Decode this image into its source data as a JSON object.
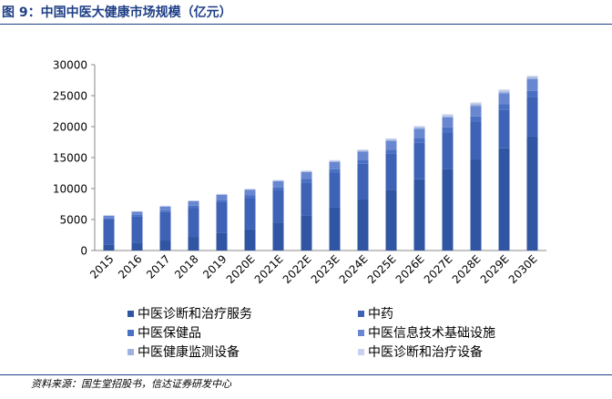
{
  "header": {
    "title": "图 9：中国中医大健康市场规模（亿元）"
  },
  "footer": {
    "source": "资料来源：国生堂招股书，信达证券研发中心"
  },
  "chart_data": {
    "type": "bar",
    "stacked": true,
    "title": "图 9：中国中医大健康市场规模（亿元）",
    "xlabel": "",
    "ylabel": "",
    "ylim": [
      0,
      30000
    ],
    "yticks": [
      "0",
      "5000",
      "10000",
      "15000",
      "20000",
      "25000",
      "30000"
    ],
    "grid": false,
    "legend_position": "bottom",
    "categories": [
      "2015",
      "2016",
      "2017",
      "2018",
      "2019",
      "2020E",
      "2021E",
      "2022E",
      "2023E",
      "2024E",
      "2025E",
      "2026E",
      "2027E",
      "2028E",
      "2029E",
      "2030E"
    ],
    "series": [
      {
        "name": "中医诊断和治疗服务",
        "color": "#2f55a3",
        "values": [
          1000,
          1300,
          1700,
          2200,
          2900,
          3500,
          4500,
          5600,
          7000,
          8300,
          9800,
          11500,
          13100,
          14700,
          16500,
          18500
        ]
      },
      {
        "name": "中药",
        "color": "#3d62b6",
        "values": [
          4000,
          4200,
          4500,
          4700,
          4900,
          4950,
          5200,
          5400,
          5500,
          5700,
          5800,
          5900,
          6000,
          6100,
          6200,
          6300
        ]
      },
      {
        "name": "中医保健品",
        "color": "#4a70c4",
        "values": [
          200,
          250,
          300,
          350,
          400,
          450,
          500,
          550,
          600,
          650,
          700,
          750,
          800,
          850,
          900,
          950
        ]
      },
      {
        "name": "中医信息技术基础设施",
        "color": "#6987d0",
        "values": [
          400,
          500,
          600,
          700,
          800,
          900,
          1000,
          1100,
          1200,
          1300,
          1400,
          1500,
          1600,
          1700,
          1800,
          1900
        ]
      },
      {
        "name": "中医健康监测设备",
        "color": "#9fb2df",
        "values": [
          50,
          50,
          60,
          60,
          70,
          80,
          90,
          100,
          120,
          150,
          170,
          200,
          230,
          260,
          300,
          350
        ]
      },
      {
        "name": "中医诊断和治疗设备",
        "color": "#c7d2ec",
        "values": [
          50,
          50,
          60,
          70,
          80,
          100,
          110,
          150,
          180,
          200,
          230,
          250,
          270,
          300,
          300,
          200
        ]
      }
    ]
  }
}
